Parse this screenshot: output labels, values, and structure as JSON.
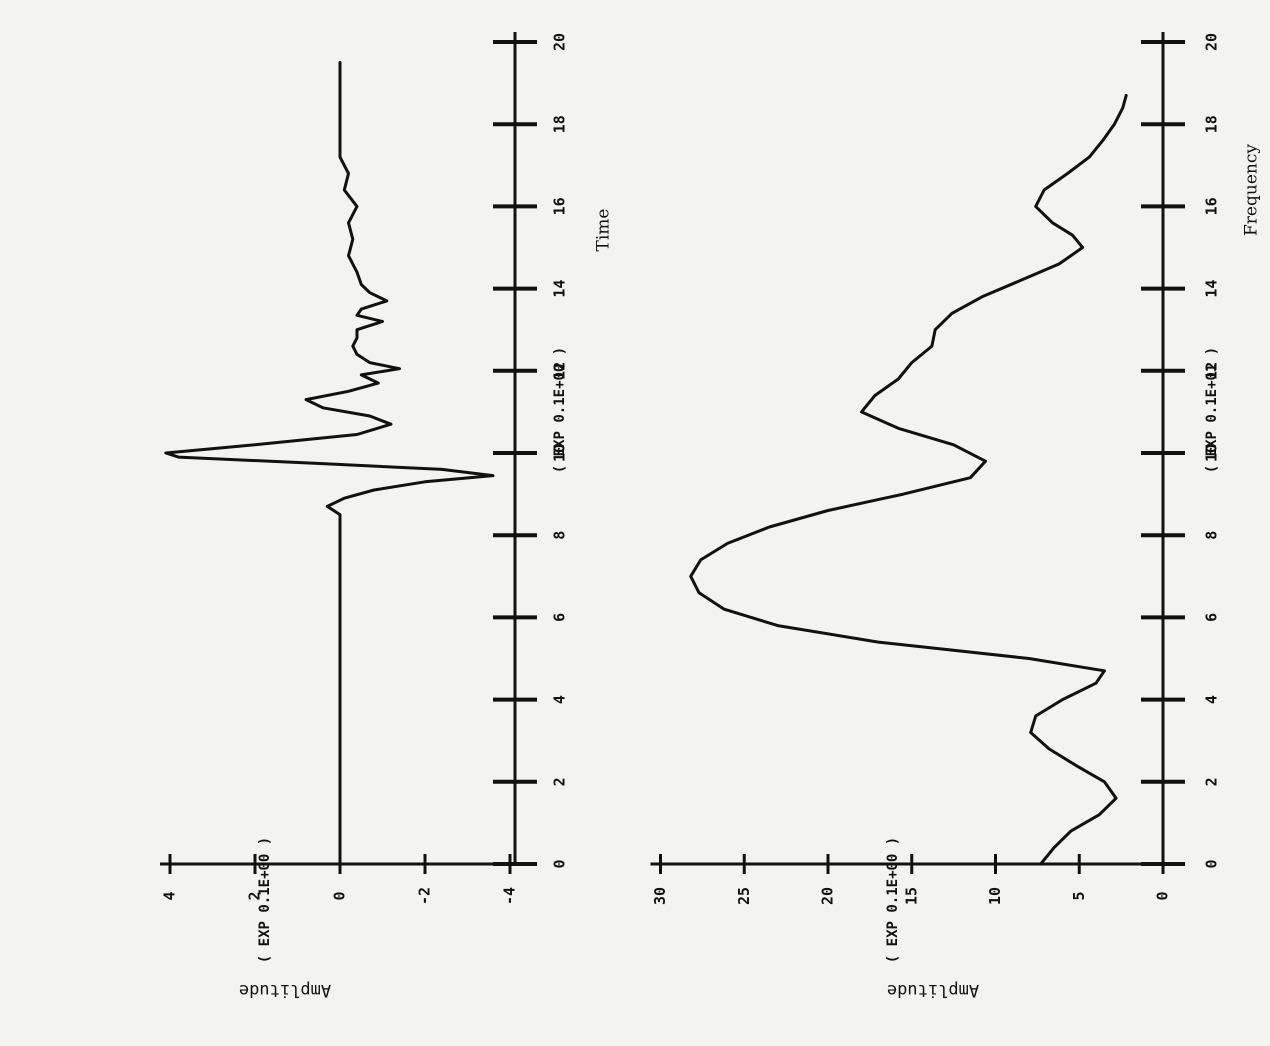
{
  "chart_data": [
    {
      "type": "line",
      "xlabel": "Time",
      "x_exp_label": "( EXP  0.1E+00 )",
      "ylabel": "Amplitude",
      "y_exp_label": "( EXP  0.1E+00 )",
      "x_ticks": [
        0,
        2,
        4,
        6,
        8,
        10,
        12,
        14,
        16,
        18,
        20
      ],
      "y_ticks": [
        -4,
        -2,
        0,
        2,
        4
      ],
      "xlim": [
        0,
        20
      ],
      "ylim": [
        -4,
        4
      ],
      "series": [
        {
          "x": [
            0,
            8.5,
            8.7,
            8.9,
            9.1,
            9.3,
            9.45,
            9.6,
            9.75,
            9.9,
            10.0,
            10.2,
            10.45,
            10.7,
            10.9,
            11.1,
            11.3,
            11.5,
            11.7,
            11.9,
            12.05,
            12.2,
            12.4,
            12.6,
            12.8,
            13.0,
            13.2,
            13.35,
            13.5,
            13.7,
            13.9,
            14.1,
            14.4,
            14.8,
            15.2,
            15.6,
            16.0,
            16.4,
            16.8,
            17.2,
            19.5
          ],
          "y": [
            0,
            0,
            0.3,
            -0.1,
            -0.8,
            -2.0,
            -3.6,
            -2.4,
            0.6,
            3.8,
            4.1,
            2.0,
            -0.4,
            -1.2,
            -0.7,
            0.4,
            0.8,
            -0.2,
            -0.9,
            -0.5,
            -1.4,
            -0.7,
            -0.4,
            -0.3,
            -0.4,
            -0.4,
            -1.0,
            -0.4,
            -0.5,
            -1.1,
            -0.7,
            -0.5,
            -0.4,
            -0.2,
            -0.3,
            -0.2,
            -0.4,
            -0.1,
            -0.2,
            0,
            0
          ]
        }
      ]
    },
    {
      "type": "line",
      "xlabel": "Frequency",
      "x_exp_label": "( EXP  0.1E+01 )",
      "ylabel": "Amplitude",
      "y_exp_label": "( EXP  0.1E+00 )",
      "x_ticks": [
        0,
        2,
        4,
        6,
        8,
        10,
        12,
        14,
        16,
        18,
        20
      ],
      "y_ticks": [
        0,
        5,
        10,
        15,
        20,
        25,
        30
      ],
      "xlim": [
        0,
        20
      ],
      "ylim": [
        0,
        30
      ],
      "series": [
        {
          "x": [
            0,
            0.4,
            0.8,
            1.2,
            1.6,
            2.0,
            2.4,
            2.8,
            3.2,
            3.6,
            4.0,
            4.4,
            4.7,
            5.0,
            5.4,
            5.8,
            6.2,
            6.6,
            7.0,
            7.4,
            7.8,
            8.2,
            8.6,
            9.0,
            9.4,
            9.8,
            10.2,
            10.6,
            11.0,
            11.4,
            11.8,
            12.2,
            12.6,
            13.0,
            13.4,
            13.8,
            14.2,
            14.6,
            15.0,
            15.3,
            15.6,
            16.0,
            16.4,
            16.8,
            17.2,
            17.6,
            18.0,
            18.4,
            18.7
          ],
          "y": [
            7.3,
            6.5,
            5.5,
            3.8,
            2.8,
            3.5,
            5.2,
            6.8,
            7.9,
            7.6,
            6.0,
            4.0,
            3.5,
            8.0,
            17.0,
            23.0,
            26.2,
            27.7,
            28.2,
            27.6,
            26.0,
            23.5,
            20.0,
            15.5,
            11.5,
            10.6,
            12.5,
            15.8,
            18.0,
            17.2,
            15.8,
            15.0,
            13.8,
            13.6,
            12.6,
            10.8,
            8.5,
            6.2,
            4.8,
            5.4,
            6.6,
            7.6,
            7.1,
            5.7,
            4.4,
            3.6,
            2.9,
            2.4,
            2.2
          ]
        }
      ]
    }
  ]
}
